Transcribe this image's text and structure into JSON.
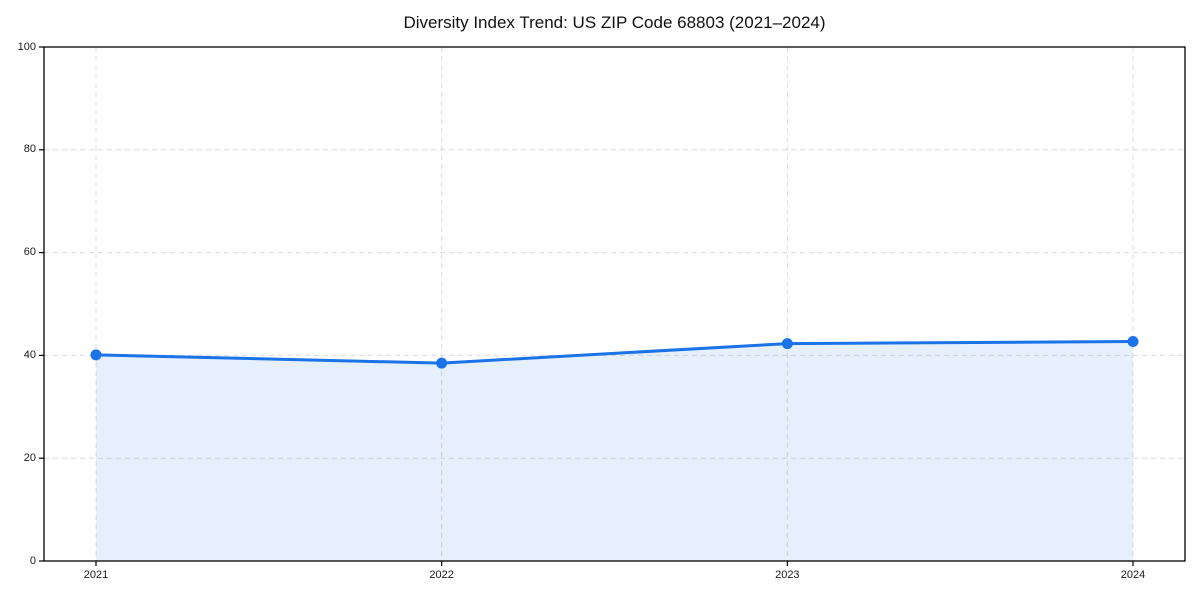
{
  "chart_data": {
    "type": "area",
    "title": "Diversity Index Trend: US ZIP Code 68803 (2021–2024)",
    "categories": [
      "2021",
      "2022",
      "2023",
      "2024"
    ],
    "series": [
      {
        "name": "Diversity Index",
        "values": [
          40.1,
          38.5,
          42.3,
          42.7
        ]
      }
    ],
    "xlabel": "",
    "ylabel": "",
    "ylim": [
      0,
      100
    ],
    "yticks": [
      0,
      20,
      40,
      60,
      80,
      100
    ],
    "grid": true,
    "grid_style": "dashed",
    "legend": "none",
    "colors": {
      "line": "#1a73e8",
      "marker": "#1a73e8",
      "fill": "rgba(26,115,232,0.11)",
      "gridline": "#dcdcdc",
      "spine": "#000000",
      "tick_text": "#1a1a1a",
      "title_text": "#111111"
    }
  }
}
